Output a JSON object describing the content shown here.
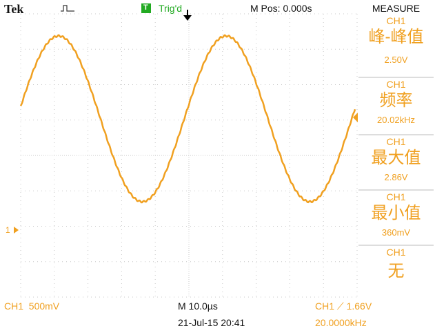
{
  "header": {
    "brand": "Tek",
    "trigger_icon": "T",
    "trigger_status": "Trig'd",
    "position": "M Pos: 0.000s",
    "menu": "MEASURE"
  },
  "channel_marker": "1",
  "measurements": [
    {
      "source": "CH1",
      "label": "峰-峰值",
      "value": "2.50V"
    },
    {
      "source": "CH1",
      "label": "频率",
      "value": "20.02kHz"
    },
    {
      "source": "CH1",
      "label": "最大值",
      "value": "2.86V"
    },
    {
      "source": "CH1",
      "label": "最小值",
      "value": "360mV"
    },
    {
      "source": "CH1",
      "label": "无"
    }
  ],
  "footer": {
    "channel_scale": "CH1  500mV",
    "timebase": "M 10.0µs",
    "trigger": "CH1 ⟋ 1.66V",
    "date": "21-Jul-15 20:41",
    "frequency": "20.0000kHz"
  }
}
